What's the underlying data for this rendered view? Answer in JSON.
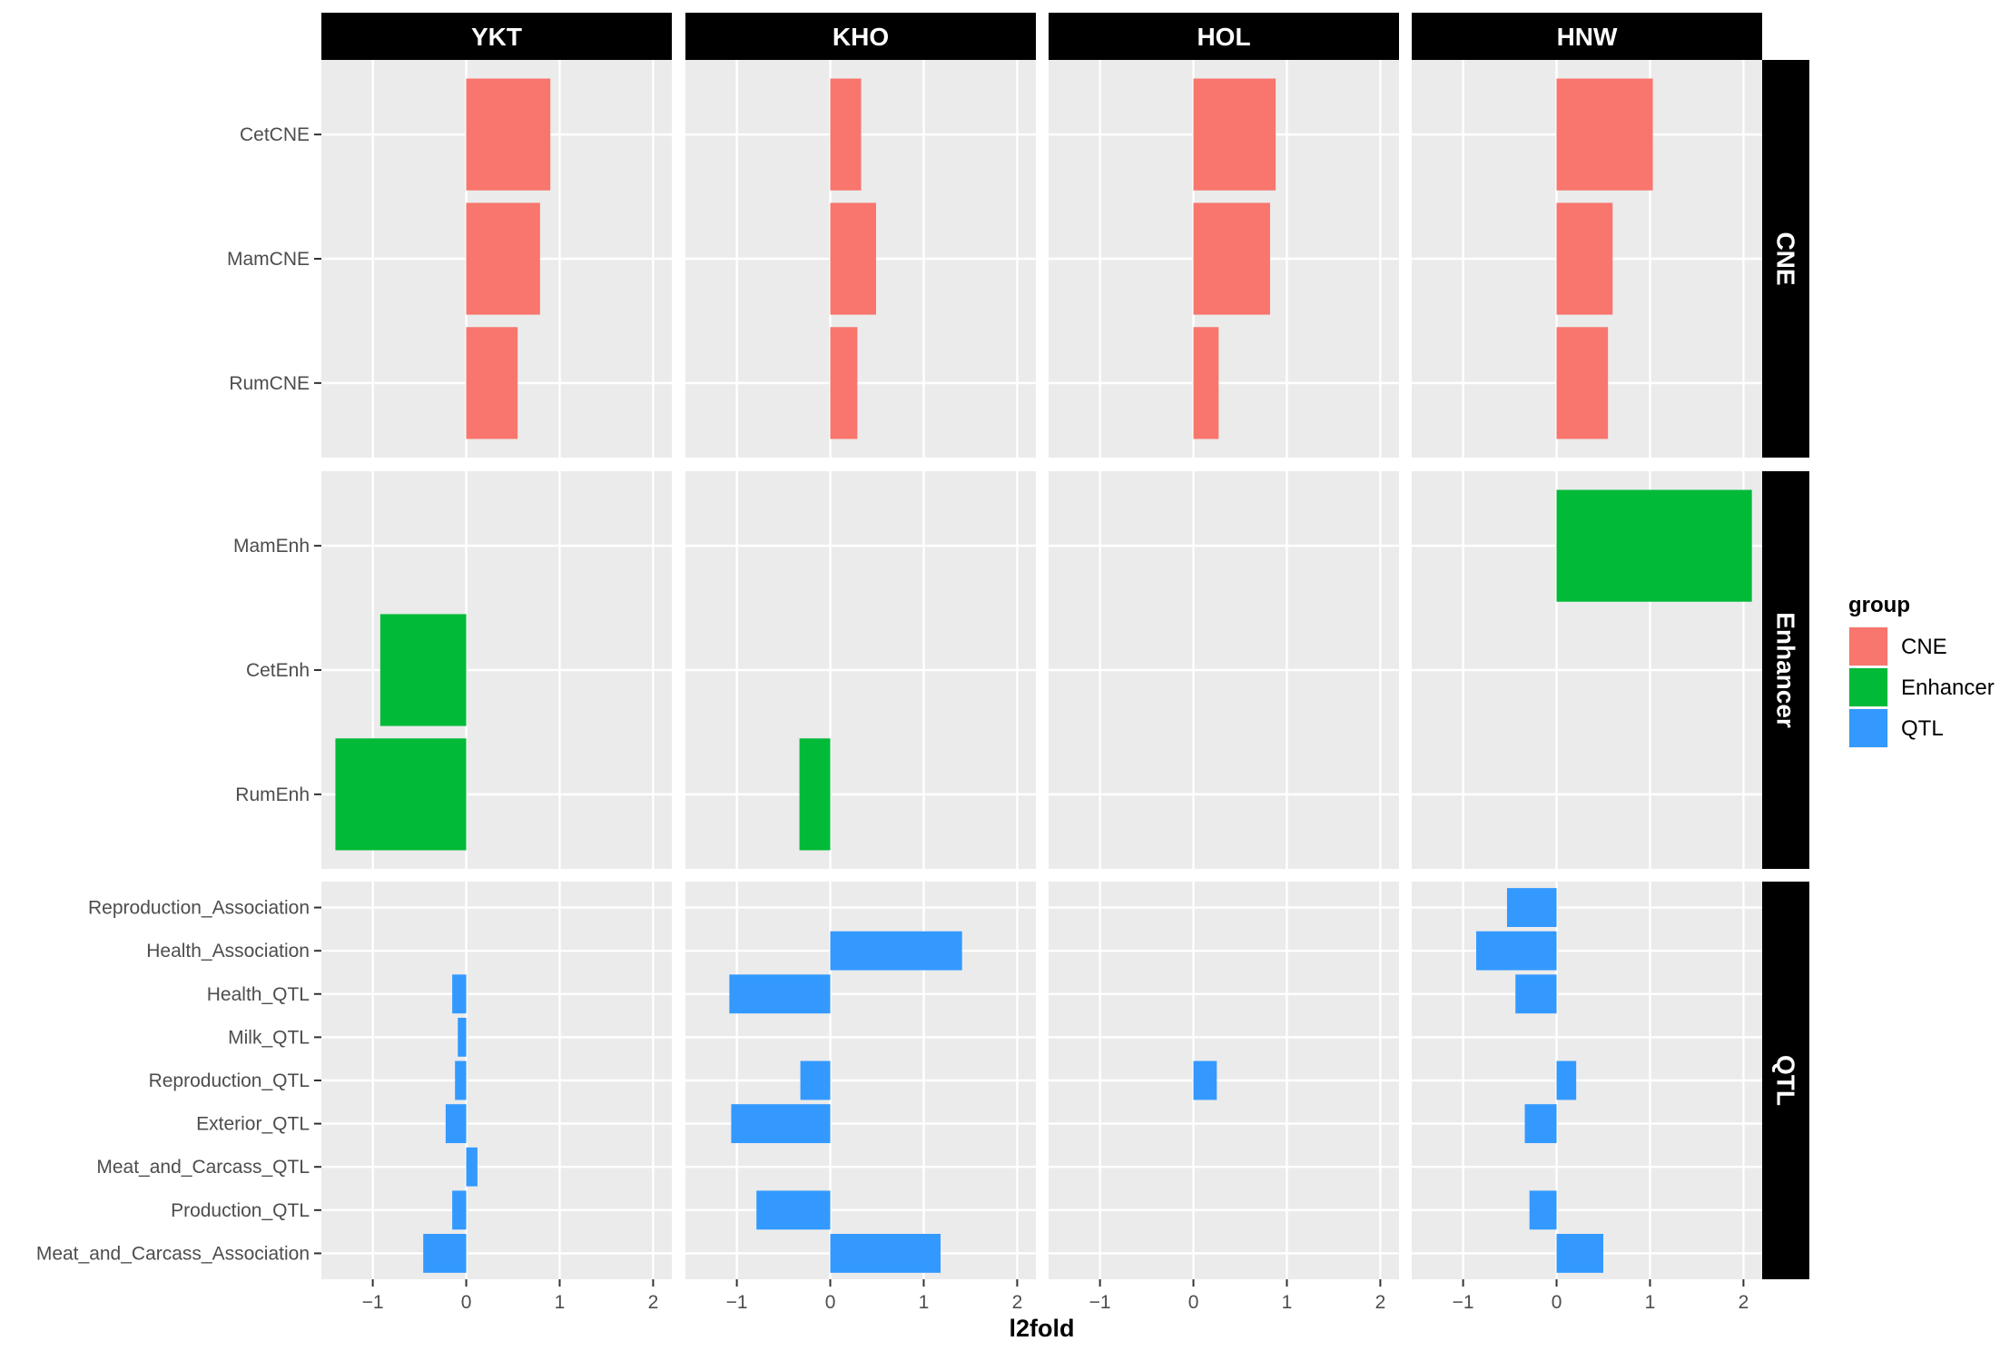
{
  "chart_data": {
    "type": "bar",
    "orientation": "horizontal",
    "facet_columns": [
      "YKT",
      "KHO",
      "HOL",
      "HNW"
    ],
    "facet_rows": [
      {
        "name": "CNE",
        "categories": [
          "CetCNE",
          "MamCNE",
          "RumCNE"
        ]
      },
      {
        "name": "Enhancer",
        "categories": [
          "MamEnh",
          "CetEnh",
          "RumEnh"
        ]
      },
      {
        "name": "QTL",
        "categories": [
          "Reproduction_Association",
          "Health_Association",
          "Health_QTL",
          "Milk_QTL",
          "Reproduction_QTL",
          "Exterior_QTL",
          "Meat_and_Carcass_QTL",
          "Production_QTL",
          "Meat_and_Carcass_Association"
        ]
      }
    ],
    "xlabel": "l2fold",
    "xlim": [
      -1.55,
      2.2
    ],
    "xticks": [
      -1,
      0,
      1,
      2
    ],
    "xtick_labels": [
      "−1",
      "0",
      "1",
      "2"
    ],
    "legend": {
      "title": "group",
      "position": "right",
      "items": [
        {
          "name": "CNE",
          "color": "#F8766D"
        },
        {
          "name": "Enhancer",
          "color": "#00BA38"
        },
        {
          "name": "QTL",
          "color": "#3399FF"
        }
      ]
    },
    "values": {
      "YKT": {
        "CNE": {
          "CetCNE": 0.9,
          "MamCNE": 0.79,
          "RumCNE": 0.55
        },
        "Enhancer": {
          "MamEnh": null,
          "CetEnh": -0.92,
          "RumEnh": -1.4
        },
        "QTL": {
          "Reproduction_Association": null,
          "Health_Association": null,
          "Health_QTL": -0.15,
          "Milk_QTL": -0.09,
          "Reproduction_QTL": -0.12,
          "Exterior_QTL": -0.22,
          "Meat_and_Carcass_QTL": 0.12,
          "Production_QTL": -0.15,
          "Meat_and_Carcass_Association": -0.46
        }
      },
      "KHO": {
        "CNE": {
          "CetCNE": 0.33,
          "MamCNE": 0.49,
          "RumCNE": 0.29
        },
        "Enhancer": {
          "MamEnh": null,
          "CetEnh": null,
          "RumEnh": -0.33
        },
        "QTL": {
          "Reproduction_Association": null,
          "Health_Association": 1.41,
          "Health_QTL": -1.08,
          "Milk_QTL": null,
          "Reproduction_QTL": -0.32,
          "Exterior_QTL": -1.06,
          "Meat_and_Carcass_QTL": null,
          "Production_QTL": -0.79,
          "Meat_and_Carcass_Association": 1.18
        }
      },
      "HOL": {
        "CNE": {
          "CetCNE": 0.88,
          "MamCNE": 0.82,
          "RumCNE": 0.27
        },
        "Enhancer": {
          "MamEnh": null,
          "CetEnh": null,
          "RumEnh": null
        },
        "QTL": {
          "Reproduction_Association": null,
          "Health_Association": null,
          "Health_QTL": null,
          "Milk_QTL": null,
          "Reproduction_QTL": 0.25,
          "Exterior_QTL": null,
          "Meat_and_Carcass_QTL": null,
          "Production_QTL": null,
          "Meat_and_Carcass_Association": null
        }
      },
      "HNW": {
        "CNE": {
          "CetCNE": 1.03,
          "MamCNE": 0.6,
          "RumCNE": 0.55
        },
        "Enhancer": {
          "MamEnh": 2.09,
          "CetEnh": null,
          "RumEnh": null
        },
        "QTL": {
          "Reproduction_Association": -0.53,
          "Health_Association": -0.86,
          "Health_QTL": -0.44,
          "Milk_QTL": null,
          "Reproduction_QTL": 0.21,
          "Exterior_QTL": -0.34,
          "Meat_and_Carcass_QTL": null,
          "Production_QTL": -0.29,
          "Meat_and_Carcass_Association": 0.5
        }
      }
    }
  }
}
